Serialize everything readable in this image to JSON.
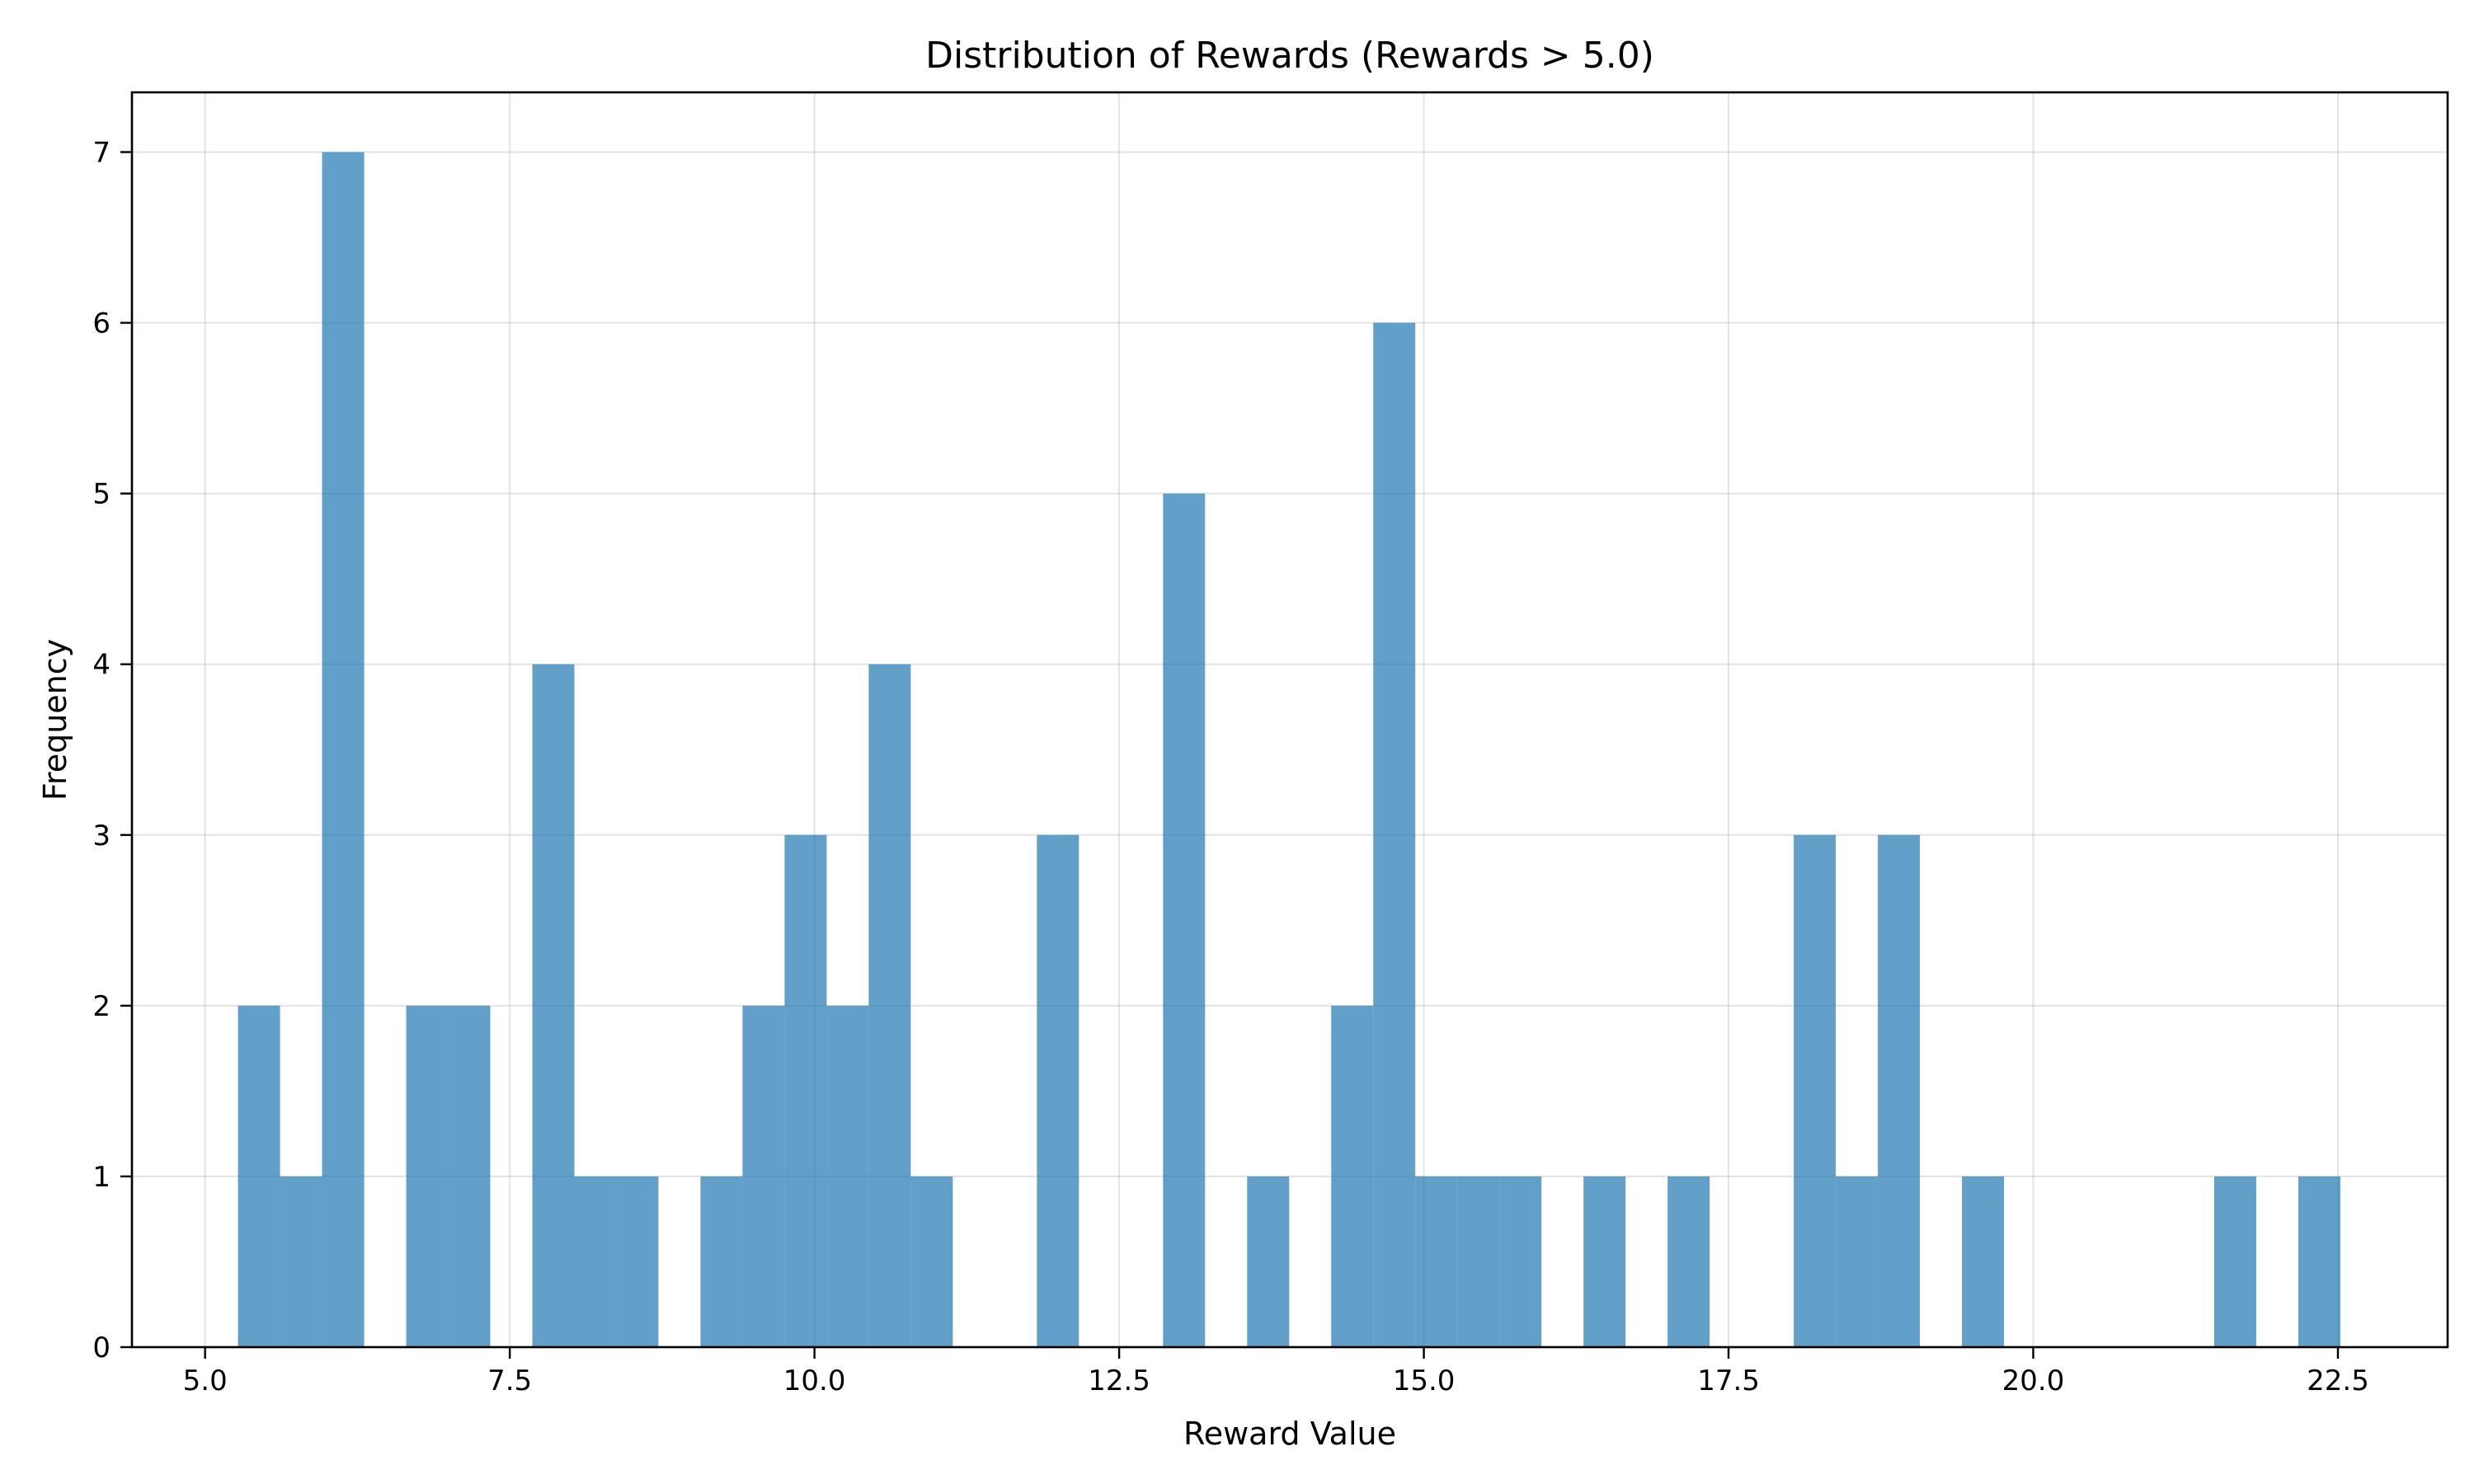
{
  "chart_data": {
    "type": "bar",
    "title": "Distribution of Rewards (Rewards > 5.0)",
    "xlabel": "Reward Value",
    "ylabel": "Frequency",
    "xlim": [
      4.4,
      23.4
    ],
    "ylim": [
      0,
      7.35
    ],
    "xticks": [
      {
        "value": 5.0,
        "label": "5.0"
      },
      {
        "value": 7.5,
        "label": "7.5"
      },
      {
        "value": 10.0,
        "label": "10.0"
      },
      {
        "value": 12.5,
        "label": "12.5"
      },
      {
        "value": 15.0,
        "label": "15.0"
      },
      {
        "value": 17.5,
        "label": "17.5"
      },
      {
        "value": 20.0,
        "label": "20.0"
      },
      {
        "value": 22.5,
        "label": "22.5"
      }
    ],
    "yticks": [
      {
        "value": 0,
        "label": "0"
      },
      {
        "value": 1,
        "label": "1"
      },
      {
        "value": 2,
        "label": "2"
      },
      {
        "value": 3,
        "label": "3"
      },
      {
        "value": 4,
        "label": "4"
      },
      {
        "value": 5,
        "label": "5"
      },
      {
        "value": 6,
        "label": "6"
      },
      {
        "value": 7,
        "label": "7"
      }
    ],
    "grid": true,
    "bar_color": "#1f77b4",
    "bin_start": 5.27,
    "bin_width": 0.345,
    "counts": [
      2,
      1,
      7,
      0,
      2,
      2,
      0,
      4,
      1,
      1,
      0,
      1,
      2,
      3,
      2,
      4,
      1,
      0,
      0,
      3,
      0,
      0,
      5,
      0,
      1,
      0,
      2,
      6,
      1,
      1,
      1,
      0,
      1,
      0,
      1,
      0,
      0,
      3,
      1,
      3,
      0,
      1,
      0,
      0,
      0,
      0,
      0,
      1,
      0,
      1
    ]
  }
}
